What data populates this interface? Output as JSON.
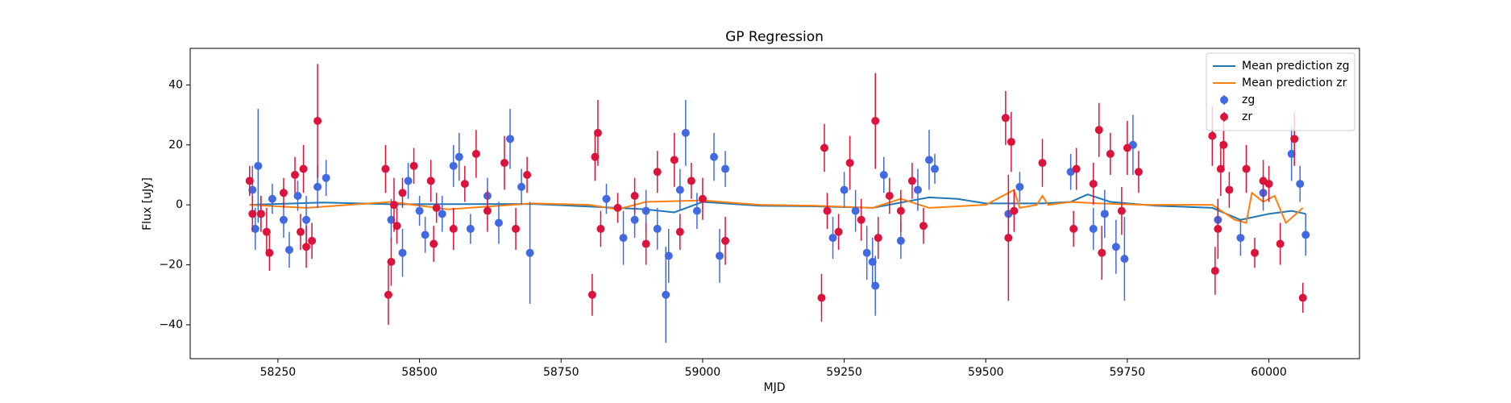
{
  "chart_data": {
    "type": "errorbar-line",
    "title": "GP Regression",
    "xlabel": "MJD",
    "ylabel": "Flux [uJy]",
    "xlim": [
      58095,
      60160
    ],
    "ylim": [
      -51.3,
      52.2
    ],
    "xticks": [
      58250,
      58500,
      58750,
      59000,
      59250,
      59500,
      59750,
      60000
    ],
    "yticks": [
      {
        "value": -40,
        "label": "−40"
      },
      {
        "value": -20,
        "label": "−20"
      },
      0,
      20,
      40
    ],
    "legend": "upper right",
    "series": [
      {
        "name": "Mean prediction zg",
        "kind": "line",
        "color": "#1f77b4",
        "x": [
          58200,
          58330,
          58450,
          58700,
          58850,
          58900,
          58950,
          59000,
          59100,
          59200,
          59300,
          59400,
          59450,
          59500,
          59600,
          59650,
          59680,
          59720,
          59800,
          59900,
          59950,
          60000,
          60040,
          60065
        ],
        "values": [
          0,
          0.8,
          0.2,
          0.3,
          -1,
          -1.5,
          -2.5,
          1,
          -0.3,
          -0.5,
          -1,
          2.5,
          2,
          0.5,
          0.5,
          1,
          3.5,
          1,
          -0.3,
          -1,
          -5,
          -3,
          -2,
          -3
        ]
      },
      {
        "name": "Mean prediction zr",
        "kind": "line",
        "color": "#ff7f0e",
        "x": [
          58200,
          58300,
          58450,
          58550,
          58700,
          58800,
          58850,
          58900,
          59000,
          59100,
          59200,
          59300,
          59350,
          59400,
          59500,
          59550,
          59560,
          59590,
          59600,
          59610,
          59650,
          59700,
          59780,
          59900,
          59940,
          59960,
          59970,
          59990,
          60010,
          60030,
          60060
        ],
        "values": [
          0,
          -1,
          1,
          -1.5,
          0.5,
          0,
          -1.5,
          1,
          1.5,
          0,
          -0.3,
          -1,
          2,
          -1,
          0,
          5,
          -1,
          0,
          3,
          0,
          1,
          0.5,
          0,
          0,
          -5,
          -6,
          4,
          1,
          3,
          -6,
          -1
        ]
      },
      {
        "name": "zg",
        "kind": "errorbar",
        "color": "#4169e1",
        "x": [
          58205,
          58210,
          58215,
          58220,
          58240,
          58260,
          58270,
          58285,
          58300,
          58320,
          58335,
          58450,
          58470,
          58480,
          58500,
          58510,
          58540,
          58560,
          58570,
          58590,
          58620,
          58640,
          58660,
          58680,
          58695,
          58830,
          58860,
          58880,
          58900,
          58920,
          58935,
          58940,
          58960,
          58970,
          58990,
          59020,
          59030,
          59040,
          59230,
          59250,
          59270,
          59290,
          59300,
          59305,
          59320,
          59350,
          59380,
          59400,
          59410,
          59540,
          59560,
          59650,
          59690,
          59710,
          59730,
          59745,
          59760,
          59910,
          59950,
          59990,
          60040,
          60055,
          60065
        ],
        "values": [
          5,
          -8,
          13,
          -3,
          2,
          -5,
          -15,
          3,
          -5,
          6,
          9,
          -5,
          -16,
          8,
          -2,
          -10,
          -3,
          13,
          16,
          -8,
          3,
          -6,
          22,
          6,
          -16,
          2,
          -11,
          -5,
          -2,
          -8,
          -30,
          -17,
          5,
          24,
          -2,
          16,
          -17,
          12,
          -11,
          5,
          -2,
          -16,
          -19,
          -27,
          10,
          -12,
          5,
          15,
          12,
          -3,
          6,
          11,
          -8,
          -3,
          -14,
          -18,
          20,
          -5,
          -11,
          4,
          17,
          7,
          -10
        ],
        "errors": [
          8,
          7,
          19,
          6,
          5,
          6,
          6,
          5,
          8,
          7,
          6,
          7,
          8,
          6,
          5,
          6,
          6,
          7,
          8,
          5,
          6,
          7,
          10,
          6,
          17,
          5,
          9,
          6,
          7,
          7,
          16,
          9,
          7,
          11,
          6,
          8,
          9,
          6,
          7,
          6,
          7,
          9,
          8,
          10,
          6,
          6,
          7,
          10,
          5,
          7,
          5,
          6,
          7,
          8,
          9,
          14,
          10,
          7,
          6,
          6,
          9,
          6,
          7
        ]
      },
      {
        "name": "zr",
        "kind": "errorbar",
        "color": "#dc143c",
        "x": [
          58200,
          58205,
          58220,
          58230,
          58235,
          58260,
          58280,
          58290,
          58300,
          58310,
          58320,
          58295,
          58440,
          58445,
          58450,
          58455,
          58460,
          58470,
          58490,
          58520,
          58525,
          58530,
          58560,
          58580,
          58600,
          58620,
          58650,
          58670,
          58690,
          58805,
          58810,
          58815,
          58820,
          58850,
          58880,
          58900,
          58920,
          58950,
          58960,
          58980,
          59000,
          59040,
          59210,
          59215,
          59220,
          59240,
          59260,
          59280,
          59305,
          59310,
          59330,
          59350,
          59370,
          59390,
          59535,
          59540,
          59545,
          59550,
          59600,
          59655,
          59660,
          59690,
          59700,
          59705,
          59720,
          59740,
          59750,
          59770,
          59900,
          59905,
          59910,
          59915,
          59920,
          59930,
          59960,
          59975,
          59990,
          60000,
          60020,
          60045,
          60060
        ],
        "values": [
          8,
          -3,
          -3,
          -9,
          -16,
          4,
          10,
          -9,
          -14,
          -12,
          28,
          12,
          12,
          -30,
          -19,
          0,
          -7,
          4,
          13,
          8,
          -13,
          -1,
          -8,
          7,
          17,
          -2,
          14,
          -8,
          10,
          -30,
          16,
          24,
          -8,
          -1,
          3,
          -13,
          11,
          15,
          -9,
          8,
          2,
          -12,
          -31,
          19,
          -2,
          -9,
          14,
          -5,
          28,
          -11,
          3,
          -2,
          8,
          -7,
          29,
          -11,
          21,
          -2,
          14,
          -8,
          12,
          7,
          25,
          -16,
          17,
          -2,
          19,
          11,
          23,
          -22,
          -8,
          12,
          20,
          5,
          12,
          -16,
          8,
          7,
          -13,
          22,
          -31
        ],
        "errors": [
          5,
          6,
          6,
          8,
          6,
          5,
          6,
          6,
          7,
          6,
          19,
          8,
          8,
          10,
          8,
          9,
          6,
          5,
          6,
          7,
          6,
          5,
          7,
          6,
          8,
          7,
          9,
          7,
          6,
          7,
          8,
          11,
          6,
          5,
          6,
          7,
          7,
          9,
          6,
          6,
          7,
          8,
          8,
          8,
          6,
          6,
          9,
          7,
          16,
          7,
          6,
          7,
          6,
          6,
          9,
          21,
          10,
          7,
          8,
          6,
          7,
          7,
          9,
          9,
          7,
          8,
          9,
          7,
          10,
          8,
          10,
          9,
          8,
          6,
          8,
          5,
          7,
          6,
          7,
          9,
          5
        ]
      }
    ]
  }
}
